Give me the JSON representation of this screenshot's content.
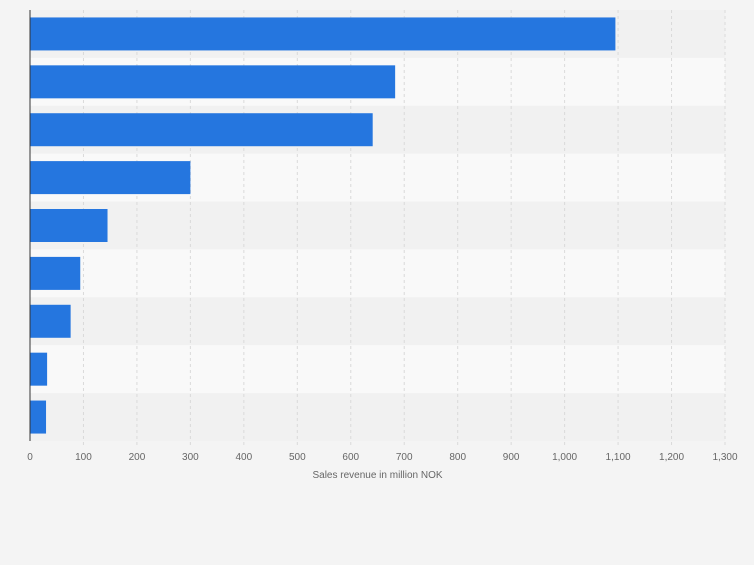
{
  "chart_data": {
    "type": "bar",
    "orientation": "horizontal",
    "categories": [
      "",
      "",
      "",
      "",
      "",
      "",
      "",
      "",
      ""
    ],
    "values": [
      1095,
      683,
      641,
      300,
      145,
      94,
      76,
      32,
      30
    ],
    "xlabel": "Sales revenue in million NOK",
    "ylabel": "",
    "title": "",
    "xlim": [
      0,
      1300
    ],
    "xticks": [
      0,
      100,
      200,
      300,
      400,
      500,
      600,
      700,
      800,
      900,
      1000,
      1100,
      1200,
      1300
    ],
    "tick_labels": [
      "0",
      "100",
      "200",
      "300",
      "400",
      "500",
      "600",
      "700",
      "800",
      "900",
      "1,000",
      "1,100",
      "1,200",
      "1,300"
    ],
    "grid": true,
    "colors": {
      "bar": "#2576df",
      "band_dark": "#f1f1f1",
      "band_light": "#f9f9f9",
      "grid": "#dadada",
      "axis": "#333333",
      "text": "#666666"
    }
  }
}
